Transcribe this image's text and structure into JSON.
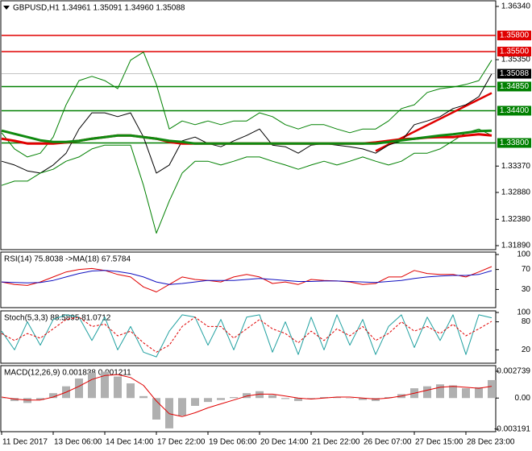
{
  "chart_data": [
    {
      "type": "line",
      "title": "GBPUSD,H1  1.34961 1.35091 1.34960 1.35088",
      "categories": [
        "11 Dec 2017",
        null,
        null,
        null,
        "13 Dec 06:00",
        null,
        null,
        null,
        "14 Dec 14:00",
        null,
        null,
        null,
        "17 Dec 22:00",
        null,
        null,
        null,
        "19 Dec 06:00",
        null,
        null,
        null,
        "20 Dec 14:00",
        null,
        null,
        null,
        "21 Dec 22:00",
        null,
        null,
        null,
        "26 Dec 07:00",
        null,
        null,
        null,
        "27 Dec 15:00",
        null,
        null,
        null,
        "28 Dec 23:00",
        null,
        null
      ],
      "series": [
        {
          "color": "#000000",
          "values": [
            1.3346,
            1.3339,
            1.3328,
            1.3324,
            1.3339,
            1.3361,
            1.3406,
            1.3436,
            1.3436,
            1.3429,
            1.3436,
            1.3391,
            1.3324,
            1.3339,
            1.3384,
            1.3391,
            1.3379,
            1.3373,
            1.3384,
            1.3394,
            1.3406,
            1.3376,
            1.3373,
            1.3361,
            1.3376,
            1.3379,
            1.3376,
            1.3373,
            1.3369,
            1.3361,
            1.3376,
            1.3384,
            1.3414,
            1.3421,
            1.3429,
            1.3444,
            1.3451,
            1.3466,
            1.35088
          ]
        },
        {
          "color": "#008000",
          "values": [
            1.3399,
            1.3369,
            1.3354,
            1.3361,
            1.3391,
            1.3451,
            1.3496,
            1.3504,
            1.3496,
            1.3481,
            1.3534,
            1.3549,
            1.3489,
            1.3406,
            1.3421,
            1.3414,
            1.3421,
            1.3414,
            1.3421,
            1.3421,
            1.3436,
            1.3429,
            1.3414,
            1.3406,
            1.3414,
            1.3414,
            1.3406,
            1.3399,
            1.3406,
            1.3406,
            1.3421,
            1.3444,
            1.3451,
            1.3474,
            1.3481,
            1.3484,
            1.3489,
            1.3496,
            1.3534
          ]
        },
        {
          "color": "#008000",
          "values": [
            1.3301,
            1.3309,
            1.3309,
            1.3324,
            1.3331,
            1.3346,
            1.3354,
            1.3369,
            1.3376,
            1.3376,
            1.3376,
            1.3301,
            1.3212,
            1.3272,
            1.3324,
            1.3346,
            1.3346,
            1.3339,
            1.3346,
            1.3354,
            1.3354,
            1.3346,
            1.3339,
            1.3331,
            1.3339,
            1.3346,
            1.3339,
            1.3346,
            1.3354,
            1.3346,
            1.3339,
            1.3346,
            1.3361,
            1.3361,
            1.3369,
            1.3384,
            1.3399,
            1.3406,
            1.3394
          ]
        },
        {
          "color": "#e00000",
          "style": "thick",
          "values": [
            1.3388,
            1.3384,
            1.3379,
            1.3379,
            1.3379,
            1.3381,
            1.3384,
            1.3388,
            1.3391,
            1.3394,
            1.3394,
            1.3391,
            1.3388,
            1.3382,
            1.3379,
            1.3379,
            1.3379,
            1.3379,
            1.3379,
            1.3379,
            1.3379,
            1.3379,
            1.3379,
            1.3379,
            1.3379,
            1.3379,
            1.3379,
            1.3379,
            1.3379,
            1.3381,
            1.3384,
            1.3387,
            1.3388,
            1.339,
            1.3391,
            1.3391,
            1.3394,
            1.3396,
            1.3394
          ]
        },
        {
          "color": "#108a10",
          "style": "thick",
          "values": [
            1.3403,
            1.3397,
            1.3391,
            1.3385,
            1.3382,
            1.3382,
            1.3384,
            1.3388,
            1.3391,
            1.3394,
            1.3394,
            1.3391,
            1.3388,
            1.3384,
            1.3382,
            1.3379,
            1.3379,
            1.3379,
            1.3379,
            1.3379,
            1.3379,
            1.3379,
            1.3379,
            1.3379,
            1.3379,
            1.3379,
            1.3379,
            1.3379,
            1.3379,
            1.3379,
            1.3382,
            1.3385,
            1.3388,
            1.3391,
            1.3394,
            1.3396,
            1.3399,
            1.3402,
            1.3403
          ]
        }
      ],
      "ylim": [
        1.3189,
        1.3634
      ],
      "yticks": [
        {
          "value": 1.3634,
          "label": "1.36340"
        },
        {
          "value": 1.3535,
          "label": "1.35350"
        },
        {
          "value": 1.3337,
          "label": "1.33370"
        },
        {
          "value": 1.3288,
          "label": "1.32880"
        },
        {
          "value": 1.3238,
          "label": "1.32380"
        },
        {
          "value": 1.3189,
          "label": "1.31890"
        }
      ],
      "levels": [
        {
          "value": 1.358,
          "label": "1.35800",
          "color": "#e00000"
        },
        {
          "value": 1.355,
          "label": "1.35500",
          "color": "#e00000"
        },
        {
          "value": 1.3485,
          "label": "1.34850",
          "color": "#008000"
        },
        {
          "value": 1.344,
          "label": "1.34400",
          "color": "#008000"
        },
        {
          "value": 1.338,
          "label": "1.33800",
          "color": "#008000"
        }
      ],
      "trend_lines": [
        {
          "color": "#e00000",
          "x": [
            29,
            38
          ],
          "y": [
            1.3365,
            1.3473
          ]
        }
      ],
      "grid": false
    },
    {
      "type": "line",
      "title": "RSI(14) 75.8038  ->MA(18) 67.5784",
      "series": [
        {
          "color": "#e00000",
          "values": [
            45,
            40,
            38,
            45,
            55,
            65,
            70,
            72,
            68,
            60,
            55,
            35,
            25,
            40,
            55,
            50,
            48,
            45,
            55,
            60,
            55,
            42,
            45,
            40,
            50,
            48,
            47,
            45,
            40,
            42,
            55,
            55,
            68,
            62,
            60,
            60,
            55,
            65,
            75.8038
          ]
        },
        {
          "color": "#1010c0",
          "values": [
            45,
            44,
            43,
            44,
            48,
            55,
            62,
            67,
            68,
            66,
            62,
            55,
            45,
            40,
            42,
            45,
            48,
            48,
            48,
            50,
            52,
            50,
            48,
            46,
            46,
            47,
            47,
            46,
            45,
            44,
            46,
            48,
            52,
            55,
            57,
            58,
            58,
            60,
            67.5784
          ]
        }
      ],
      "ylim": [
        0,
        100
      ],
      "yticks": [
        100,
        70,
        30
      ],
      "grid": false
    },
    {
      "type": "line",
      "title": "Stoch(5,3,3) 88.5895 81.0712",
      "series": [
        {
          "color": "#20a0a0",
          "values": [
            60,
            20,
            80,
            30,
            85,
            95,
            90,
            40,
            90,
            20,
            70,
            15,
            5,
            60,
            95,
            90,
            30,
            85,
            20,
            90,
            95,
            15,
            80,
            10,
            90,
            20,
            95,
            30,
            85,
            10,
            70,
            95,
            25,
            90,
            40,
            95,
            10,
            95,
            88.5895
          ]
        },
        {
          "color": "#e00000",
          "style": "dashed",
          "values": [
            55,
            40,
            55,
            45,
            65,
            85,
            90,
            70,
            75,
            50,
            60,
            35,
            15,
            30,
            70,
            90,
            70,
            70,
            45,
            65,
            85,
            65,
            55,
            35,
            60,
            40,
            65,
            50,
            70,
            40,
            55,
            80,
            60,
            70,
            55,
            75,
            50,
            65,
            81.0712
          ]
        }
      ],
      "ylim": [
        0,
        100
      ],
      "yticks": [
        100,
        80,
        20
      ],
      "grid": false
    },
    {
      "type": "bar",
      "title": "MACD(12,26,9) 0.001838 0.001211",
      "series": [
        {
          "color": "#b0b0b0",
          "values": [
            0,
            -0.0003,
            -0.0005,
            -0.0002,
            0.0005,
            0.0012,
            0.002,
            0.0026,
            0.0027,
            0.0022,
            0.0015,
            0.0002,
            -0.0022,
            -0.0031,
            -0.0018,
            -0.0008,
            -0.0004,
            -0.0002,
            0.0001,
            0.0005,
            0.0007,
            0.0003,
            -0.0001,
            -0.0003,
            -0.0001,
            0.0001,
            0.0001,
            0,
            -0.0002,
            -0.0003,
            0.0001,
            0.0004,
            0.001,
            0.0012,
            0.0014,
            0.0013,
            0.001,
            0.0011,
            0.001838
          ]
        },
        {
          "color": "#e00000",
          "kind": "line",
          "values": [
            0.0001,
            -0.0001,
            -0.0002,
            -0.0002,
            0.0001,
            0.0006,
            0.0012,
            0.0019,
            0.0023,
            0.0024,
            0.0021,
            0.0013,
            -0.0003,
            -0.0016,
            -0.0019,
            -0.0015,
            -0.001,
            -0.0006,
            -0.0002,
            0.0002,
            0.0004,
            0.0004,
            0.0002,
            0,
            -0.0001,
            0,
            0.0001,
            0.0001,
            0,
            -0.0001,
            0,
            0.0002,
            0.0005,
            0.0008,
            0.0011,
            0.0012,
            0.0011,
            0.001,
            0.001211
          ]
        }
      ],
      "ylim": [
        -0.003191,
        0.002739
      ],
      "yticks": [
        0.002739,
        {
          "value": 0,
          "label": "0.00"
        },
        -0.003191
      ],
      "grid": false
    }
  ]
}
